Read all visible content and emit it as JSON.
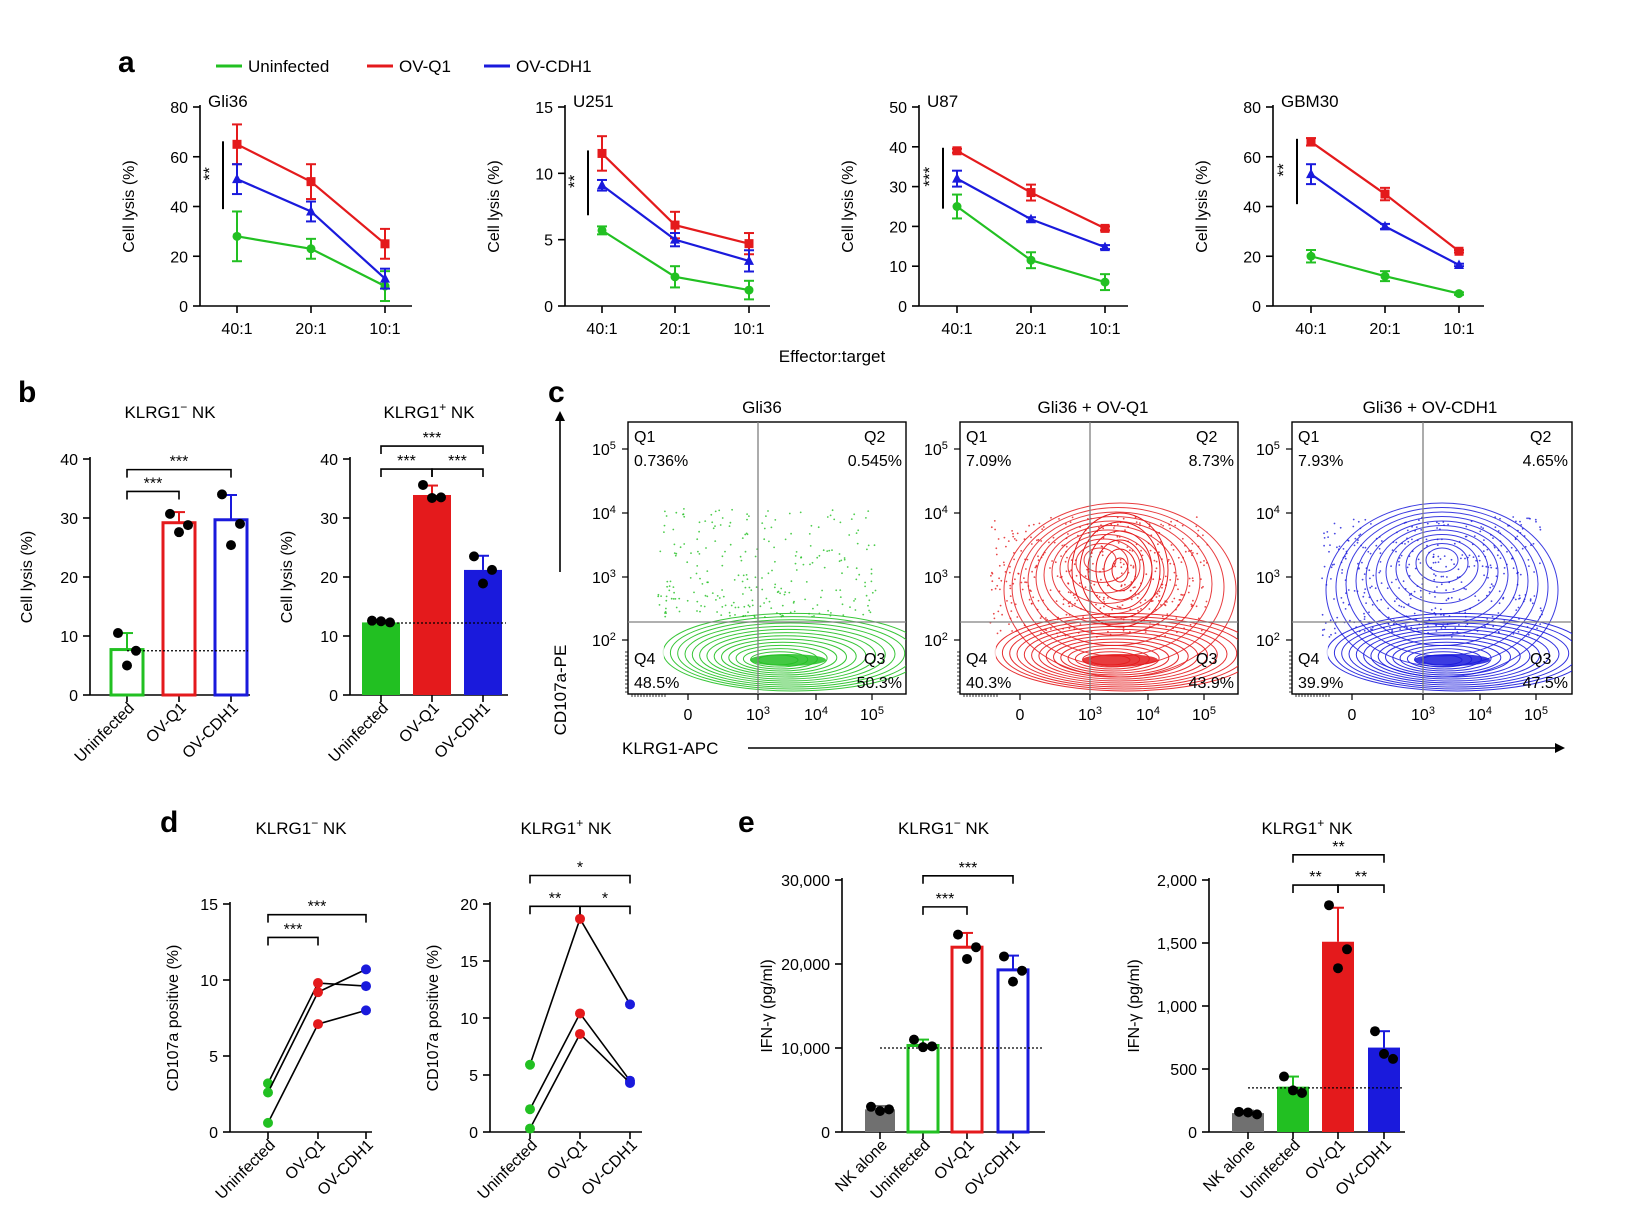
{
  "colors": {
    "uninfected": "#22c022",
    "ovq1": "#e41a1c",
    "ovcdh1": "#1a1adc",
    "nkalone": "#707070",
    "axis": "#000000",
    "gate": "#808080"
  },
  "panel_labels": {
    "a": "a",
    "b": "b",
    "c": "c",
    "d": "d",
    "e": "e"
  },
  "legend": [
    "Uninfected",
    "OV-Q1",
    "OV-CDH1"
  ],
  "shared_xlabel_a": "Effector:target",
  "chart_data": [
    {
      "id": "a1",
      "type": "line",
      "title": "Gli36",
      "ylabel": "Cell lysis (%)",
      "ylim": [
        0,
        80
      ],
      "yticks": [
        "0",
        "20",
        "40",
        "60",
        "80"
      ],
      "categories": [
        "40:1",
        "20:1",
        "10:1"
      ],
      "series": [
        {
          "name": "Uninfected",
          "values": [
            28,
            23,
            8
          ],
          "err": [
            10,
            4,
            6
          ]
        },
        {
          "name": "OV-Q1",
          "values": [
            65,
            50,
            25
          ],
          "err": [
            8,
            7,
            6
          ]
        },
        {
          "name": "OV-CDH1",
          "values": [
            51,
            38,
            11
          ],
          "err": [
            6,
            4,
            4
          ]
        }
      ],
      "sig": "**"
    },
    {
      "id": "a2",
      "type": "line",
      "title": "U251",
      "ylabel": "Cell lysis (%)",
      "ylim": [
        0,
        15
      ],
      "yticks": [
        "0",
        "5",
        "10",
        "15"
      ],
      "categories": [
        "40:1",
        "20:1",
        "10:1"
      ],
      "series": [
        {
          "name": "Uninfected",
          "values": [
            5.7,
            2.2,
            1.2
          ],
          "err": [
            0.3,
            0.8,
            0.7
          ]
        },
        {
          "name": "OV-Q1",
          "values": [
            11.5,
            6.1,
            4.7
          ],
          "err": [
            1.3,
            1.0,
            0.8
          ]
        },
        {
          "name": "OV-CDH1",
          "values": [
            9.1,
            5.0,
            3.4
          ],
          "err": [
            0.4,
            0.5,
            0.8
          ]
        }
      ],
      "sig": "**"
    },
    {
      "id": "a3",
      "type": "line",
      "title": "U87",
      "ylabel": "Cell lysis (%)",
      "ylim": [
        0,
        50
      ],
      "yticks": [
        "0",
        "10",
        "20",
        "30",
        "40",
        "50"
      ],
      "categories": [
        "40:1",
        "20:1",
        "10:1"
      ],
      "series": [
        {
          "name": "Uninfected",
          "values": [
            25,
            11.5,
            6
          ],
          "err": [
            3,
            2,
            2
          ]
        },
        {
          "name": "OV-Q1",
          "values": [
            39,
            28.5,
            19.5
          ],
          "err": [
            0.5,
            2,
            0.5
          ]
        },
        {
          "name": "OV-CDH1",
          "values": [
            32,
            21.8,
            14.8
          ],
          "err": [
            2,
            0.5,
            0.5
          ]
        }
      ],
      "sig": "***"
    },
    {
      "id": "a4",
      "type": "line",
      "title": "GBM30",
      "ylabel": "Cell lysis (%)",
      "ylim": [
        0,
        80
      ],
      "yticks": [
        "0",
        "20",
        "40",
        "60",
        "80"
      ],
      "categories": [
        "40:1",
        "20:1",
        "10:1"
      ],
      "series": [
        {
          "name": "Uninfected",
          "values": [
            20,
            12,
            5
          ],
          "err": [
            2.5,
            2,
            0.5
          ]
        },
        {
          "name": "OV-Q1",
          "values": [
            66,
            45,
            22
          ],
          "err": [
            1.5,
            2.5,
            0.5
          ]
        },
        {
          "name": "OV-CDH1",
          "values": [
            53,
            32,
            16.5
          ],
          "err": [
            4,
            1,
            0.5
          ]
        }
      ],
      "sig": "**"
    },
    {
      "id": "b1",
      "type": "bar",
      "title_main": "KLRG1",
      "title_sup": "−",
      "title_tail": " NK",
      "ylabel": "Cell lysis (%)",
      "ylim": [
        0,
        40
      ],
      "yticks": [
        "0",
        "10",
        "20",
        "30",
        "40"
      ],
      "categories": [
        "Uninfected",
        "OV-Q1",
        "OV-CDH1"
      ],
      "style": "hollow",
      "values": [
        7.7,
        29.2,
        29.7
      ],
      "err": [
        2.8,
        1.8,
        4.2
      ],
      "points": [
        [
          10.5,
          7.5,
          5
        ],
        [
          30.7,
          28.8,
          27.6
        ],
        [
          34,
          29,
          25.4
        ]
      ],
      "baseline": 7.5,
      "sig": [
        {
          "a": 0,
          "b": 1,
          "label": "***",
          "y": 34.5
        },
        {
          "a": 0,
          "b": 2,
          "label": "***",
          "y": 38.2
        }
      ]
    },
    {
      "id": "b2",
      "type": "bar",
      "title_main": "KLRG1",
      "title_sup": "+",
      "title_tail": " NK",
      "ylabel": "Cell lysis (%)",
      "ylim": [
        0,
        40
      ],
      "yticks": [
        "0",
        "10",
        "20",
        "30",
        "40"
      ],
      "categories": [
        "Uninfected",
        "OV-Q1",
        "OV-CDH1"
      ],
      "style": "filled",
      "values": [
        12.3,
        33.9,
        21.2
      ],
      "err": [
        0.3,
        1.6,
        2.4
      ],
      "points": [
        [
          12.6,
          12.3,
          12.5
        ],
        [
          35.6,
          33.5,
          33.4
        ],
        [
          23.5,
          21.2,
          18.9
        ]
      ],
      "baseline": 12.2,
      "sig": [
        {
          "a": 0,
          "b": 1,
          "label": "***",
          "y": 38.3
        },
        {
          "a": 1,
          "b": 2,
          "label": "***",
          "y": 38.3
        },
        {
          "a": 0,
          "b": 2,
          "label": "***",
          "y": 42.2
        }
      ]
    },
    {
      "id": "c1",
      "type": "flow",
      "title": "Gli36",
      "color": "uninfected",
      "quadrants": {
        "Q1": "Q1",
        "Q2": "Q2",
        "Q3": "Q3",
        "Q4": "Q4"
      },
      "pct": {
        "Q1": "0.736%",
        "Q2": "0.545%",
        "Q3": "50.3%",
        "Q4": "48.5%"
      }
    },
    {
      "id": "c2",
      "type": "flow",
      "title": "Gli36 + OV-Q1",
      "color": "ovq1",
      "quadrants": {
        "Q1": "Q1",
        "Q2": "Q2",
        "Q3": "Q3",
        "Q4": "Q4"
      },
      "pct": {
        "Q1": "7.09%",
        "Q2": "8.73%",
        "Q3": "43.9%",
        "Q4": "40.3%"
      }
    },
    {
      "id": "c3",
      "type": "flow",
      "title": "Gli36 + OV-CDH1",
      "color": "ovcdh1",
      "quadrants": {
        "Q1": "Q1",
        "Q2": "Q2",
        "Q3": "Q3",
        "Q4": "Q4"
      },
      "pct": {
        "Q1": "7.93%",
        "Q2": "4.65%",
        "Q3": "47.5%",
        "Q4": "39.9%"
      }
    },
    {
      "id": "d1",
      "type": "paired",
      "title_main": "KLRG1",
      "title_sup": "−",
      "title_tail": " NK",
      "ylabel": "CD107a positive (%)",
      "ylim": [
        0,
        15
      ],
      "yticks": [
        "0",
        "5",
        "10",
        "15"
      ],
      "categories": [
        "Uninfected",
        "OV-Q1",
        "OV-CDH1"
      ],
      "lines": [
        [
          3.2,
          9.8,
          9.6
        ],
        [
          2.6,
          9.2,
          10.7
        ],
        [
          0.6,
          7.1,
          8.0
        ]
      ],
      "sig": [
        {
          "a": 0,
          "b": 1,
          "label": "***",
          "y": 12.8
        },
        {
          "a": 0,
          "b": 2,
          "label": "***",
          "y": 14.3
        }
      ]
    },
    {
      "id": "d2",
      "type": "paired",
      "title_main": "KLRG1",
      "title_sup": "+",
      "title_tail": " NK",
      "ylabel": "CD107a positive (%)",
      "ylim": [
        0,
        20
      ],
      "yticks": [
        "0",
        "5",
        "10",
        "15",
        "20"
      ],
      "categories": [
        "Uninfected",
        "OV-Q1",
        "OV-CDH1"
      ],
      "lines": [
        [
          5.9,
          18.7,
          11.2
        ],
        [
          2.0,
          10.4,
          4.5
        ],
        [
          0.3,
          8.6,
          4.3
        ]
      ],
      "sig": [
        {
          "a": 0,
          "b": 1,
          "label": "**",
          "y": 19.8
        },
        {
          "a": 1,
          "b": 2,
          "label": "*",
          "y": 19.8
        },
        {
          "a": 0,
          "b": 2,
          "label": "*",
          "y": 22.5
        }
      ]
    },
    {
      "id": "e1",
      "type": "bar",
      "title_main": "KLRG1",
      "title_sup": "−",
      "title_tail": " NK",
      "ylabel": "IFN-γ (pg/ml)",
      "ylim": [
        0,
        30000
      ],
      "yticks": [
        "0",
        "10,000",
        "20,000",
        "30,000"
      ],
      "categories": [
        "NK alone",
        "Uninfected",
        "OV-Q1",
        "OV-CDH1"
      ],
      "style": "hollow",
      "values": [
        2700,
        10300,
        22000,
        19300
      ],
      "err": [
        400,
        700,
        1700,
        1700
      ],
      "points": [
        [
          3000,
          2700,
          2500
        ],
        [
          11000,
          10200,
          10100
        ],
        [
          23500,
          22000,
          20600
        ],
        [
          20900,
          19200,
          17900
        ]
      ],
      "baseline": 10000,
      "sig": [
        {
          "a": 1,
          "b": 2,
          "label": "***",
          "y": 26800
        },
        {
          "a": 1,
          "b": 3,
          "label": "***",
          "y": 30500
        }
      ]
    },
    {
      "id": "e2",
      "type": "bar",
      "title_main": "KLRG1",
      "title_sup": "+",
      "title_tail": " NK",
      "ylabel": "IFN-γ (pg/ml)",
      "ylim": [
        0,
        2000
      ],
      "yticks": [
        "0",
        "500",
        "1,000",
        "1,500",
        "2,000"
      ],
      "categories": [
        "NK alone",
        "Uninfected",
        "OV-Q1",
        "OV-CDH1"
      ],
      "style": "filled",
      "values": [
        150,
        360,
        1510,
        670
      ],
      "err": [
        20,
        80,
        270,
        130
      ],
      "points": [
        [
          160,
          140,
          155
        ],
        [
          440,
          310,
          330
        ],
        [
          1800,
          1450,
          1300
        ],
        [
          800,
          580,
          620
        ]
      ],
      "baseline": 350,
      "sig": [
        {
          "a": 1,
          "b": 2,
          "label": "**",
          "y": 1960
        },
        {
          "a": 2,
          "b": 3,
          "label": "**",
          "y": 1960
        },
        {
          "a": 1,
          "b": 3,
          "label": "**",
          "y": 2200
        }
      ]
    }
  ]
}
